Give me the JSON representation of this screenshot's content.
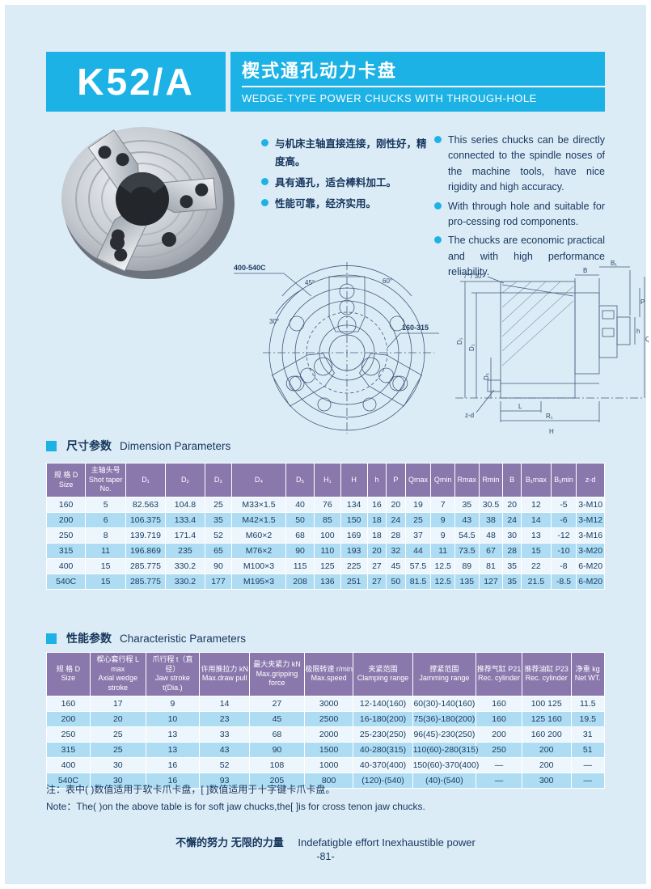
{
  "theme": {
    "accent_cyan": "#1cb2e6",
    "header_purple": "#8a78ad",
    "row_blue": "#aedcf3",
    "row_light": "#ecf6fc",
    "text_navy": "#16365c",
    "page_bg": "#dcecf7"
  },
  "header": {
    "model": "K52/A",
    "title_cn": "楔式通孔动力卡盘",
    "title_en": "WEDGE-TYPE POWER CHUCKS WITH THROUGH-HOLE"
  },
  "intro": {
    "bullets_cn": [
      "与机床主轴直接连接，刚性好，精度高。",
      "具有通孔，适合棒料加工。",
      "性能可靠，经济实用。"
    ],
    "bullets_en": [
      "This series chucks can be directly connected to the spindle noses of the machine tools, have nice rigidity and high accuracy.",
      "With through hole and suitable for pro-cessing rod components.",
      "The chucks are economic practical and with high performance reliability."
    ]
  },
  "drawings": {
    "front": {
      "callout_top": "400-540C",
      "callout_right": "160-315",
      "angle45": "45°",
      "angle60": "60°",
      "angle30": "30°"
    },
    "section": {
      "angle": "7°7′30″",
      "d1": "D₁",
      "d2": "D₂",
      "d5": "D₅",
      "b": "B",
      "b1": "B₁",
      "h": "h",
      "p": "P",
      "q": "Q",
      "hh": "H",
      "l": "L",
      "r1": "R₁",
      "zd": "z-d"
    }
  },
  "tables": {
    "dimension": {
      "title_cn": "尺寸参数",
      "title_en": "Dimension Parameters",
      "headers": [
        "规 格 D\nSize",
        "主轴头号\nShot taper No.",
        "D₁",
        "D₂",
        "D₃",
        "D₄",
        "D₅",
        "H₁",
        "H",
        "h",
        "P",
        "Qmax",
        "Qmin",
        "Rmax",
        "Rmin",
        "B",
        "B₁max",
        "B₁min",
        "z-d"
      ],
      "rows": [
        [
          "160",
          "5",
          "82.563",
          "104.8",
          "25",
          "M33×1.5",
          "40",
          "76",
          "134",
          "16",
          "20",
          "19",
          "7",
          "35",
          "30.5",
          "20",
          "12",
          "-5",
          "3-M10"
        ],
        [
          "200",
          "6",
          "106.375",
          "133.4",
          "35",
          "M42×1.5",
          "50",
          "85",
          "150",
          "18",
          "24",
          "25",
          "9",
          "43",
          "38",
          "24",
          "14",
          "-6",
          "3-M12"
        ],
        [
          "250",
          "8",
          "139.719",
          "171.4",
          "52",
          "M60×2",
          "68",
          "100",
          "169",
          "18",
          "28",
          "37",
          "9",
          "54.5",
          "48",
          "30",
          "13",
          "-12",
          "3-M16"
        ],
        [
          "315",
          "11",
          "196.869",
          "235",
          "65",
          "M76×2",
          "90",
          "110",
          "193",
          "20",
          "32",
          "44",
          "11",
          "73.5",
          "67",
          "28",
          "15",
          "-10",
          "3-M20"
        ],
        [
          "400",
          "15",
          "285.775",
          "330.2",
          "90",
          "M100×3",
          "115",
          "125",
          "225",
          "27",
          "45",
          "57.5",
          "12.5",
          "89",
          "81",
          "35",
          "22",
          "-8",
          "6-M20"
        ],
        [
          "540C",
          "15",
          "285.775",
          "330.2",
          "177",
          "M195×3",
          "208",
          "136",
          "251",
          "27",
          "50",
          "81.5",
          "12.5",
          "135",
          "127",
          "35",
          "21.5",
          "-8.5",
          "6-M20"
        ]
      ]
    },
    "characteristic": {
      "title_cn": "性能参数",
      "title_en": "Characteristic Parameters",
      "headers": [
        "规 格 D\nSize",
        "楔心套行程 L max\nAxial wedge stroke",
        "爪行程 t（直径）\nJaw stroke t(Dia.)",
        "许用推拉力 kN\nMax.draw pull",
        "最大夹紧力 kN\nMax.gripping force",
        "极限转速 r/min\nMax.speed",
        "夹紧范围\nClamping range",
        "撑紧范围\nJamming range",
        "推荐气缸 P21\nRec. cylinder",
        "推荐油缸 P23\nRec. cylinder",
        "净重 kg\nNet WT."
      ],
      "rows": [
        [
          "160",
          "17",
          "9",
          "14",
          "27",
          "3000",
          "12-140(160)",
          "60(30)-140(160)",
          "160",
          "100 125",
          "11.5"
        ],
        [
          "200",
          "20",
          "10",
          "23",
          "45",
          "2500",
          "16-180(200)",
          "75(36)-180(200)",
          "160",
          "125 160",
          "19.5"
        ],
        [
          "250",
          "25",
          "13",
          "33",
          "68",
          "2000",
          "25-230(250)",
          "96(45)-230(250)",
          "200",
          "160 200",
          "31"
        ],
        [
          "315",
          "25",
          "13",
          "43",
          "90",
          "1500",
          "40-280(315)",
          "110(60)-280(315)",
          "250",
          "200",
          "51"
        ],
        [
          "400",
          "30",
          "16",
          "52",
          "108",
          "1000",
          "40-370(400)",
          "150(60)-370(400)",
          "—",
          "200",
          "—"
        ],
        [
          "540C",
          "30",
          "16",
          "93",
          "205",
          "800",
          "(120)-(540)",
          "(40)-(540)",
          "—",
          "300",
          "—"
        ]
      ]
    }
  },
  "notes": {
    "cn": "注：表中( )数值适用于软卡爪卡盘，[ ]数值适用于十字键卡爪卡盘。",
    "en": "Note：The( )on the above table is for soft jaw chucks,the[ ]is for cross tenon jaw chucks."
  },
  "footer": {
    "slogan_cn": "不懈的努力  无限的力量",
    "slogan_en": "Indefatigble effort  Inexhaustible power",
    "page": "-81-"
  }
}
